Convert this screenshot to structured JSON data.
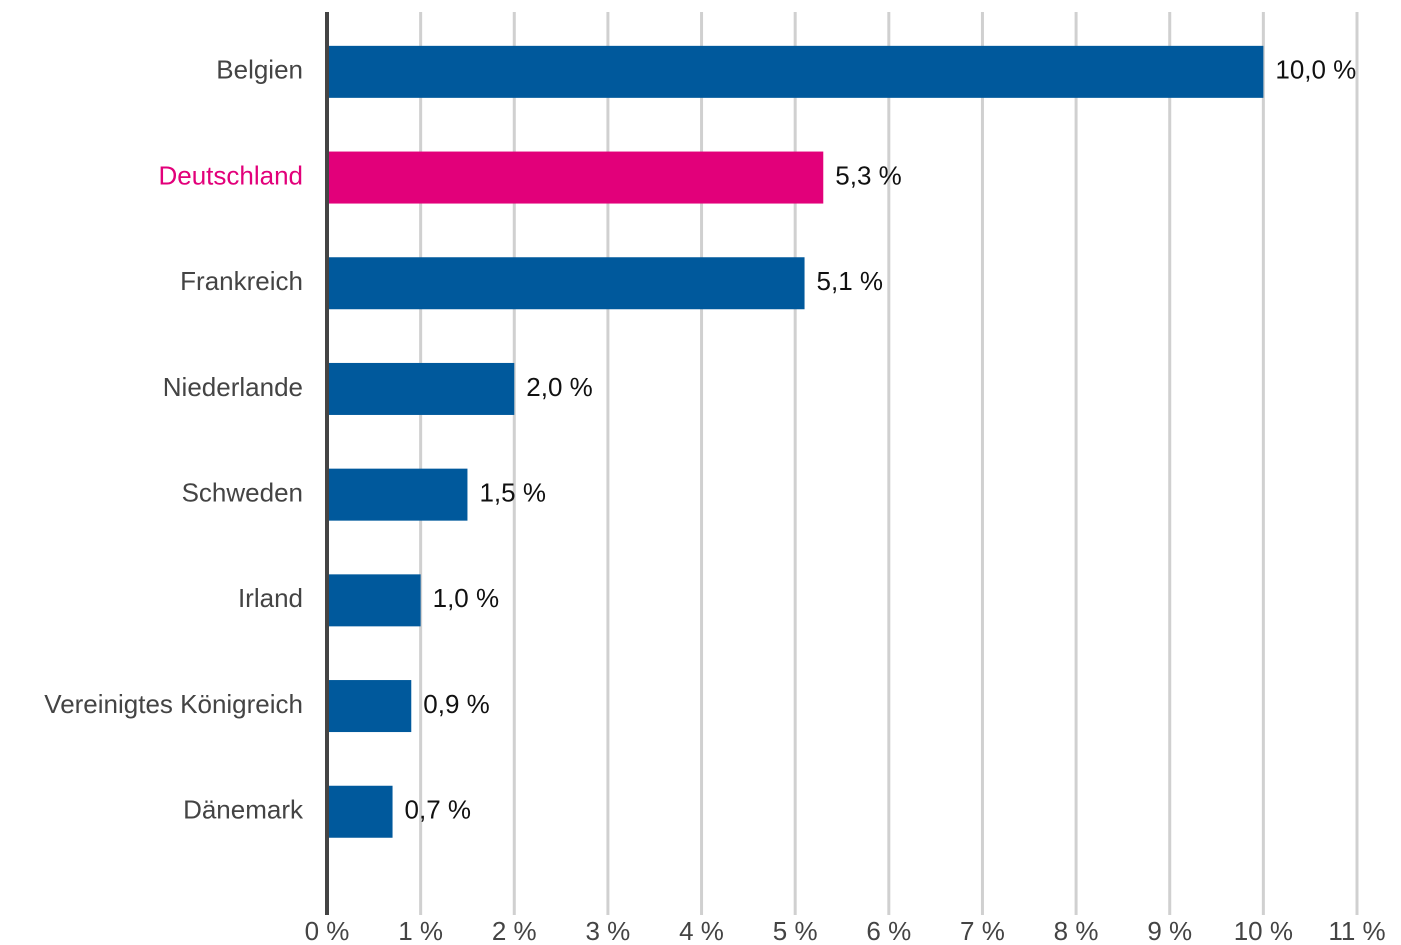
{
  "chart_data": {
    "type": "bar",
    "orientation": "horizontal",
    "categories": [
      "Belgien",
      "Deutschland",
      "Frankreich",
      "Niederlande",
      "Schweden",
      "Irland",
      "Vereinigtes Königreich",
      "Dänemark"
    ],
    "values": [
      10.0,
      5.3,
      5.1,
      2.0,
      1.5,
      1.0,
      0.9,
      0.7
    ],
    "value_labels": [
      "10,0 %",
      "5,3 %",
      "5,1 %",
      "2,0 %",
      "1,5 %",
      "1,0 %",
      "0,9 %",
      "0,7 %"
    ],
    "colors": [
      "#00599c",
      "#e2007a",
      "#00599c",
      "#00599c",
      "#00599c",
      "#00599c",
      "#00599c",
      "#00599c"
    ],
    "label_colors": [
      "#444444",
      "#e2007a",
      "#444444",
      "#444444",
      "#444444",
      "#444444",
      "#444444",
      "#444444"
    ],
    "xlim": [
      0,
      11
    ],
    "xticks": [
      {
        "value": 0,
        "label": "0 %"
      },
      {
        "value": 1,
        "label": "1 %"
      },
      {
        "value": 2,
        "label": "2 %"
      },
      {
        "value": 3,
        "label": "3 %"
      },
      {
        "value": 4,
        "label": "4 %"
      },
      {
        "value": 5,
        "label": "5 %"
      },
      {
        "value": 6,
        "label": "6 %"
      },
      {
        "value": 7,
        "label": "7 %"
      },
      {
        "value": 8,
        "label": "8 %"
      },
      {
        "value": 9,
        "label": "9 %"
      },
      {
        "value": 10,
        "label": "10 %"
      },
      {
        "value": 11,
        "label": "11 %"
      }
    ],
    "grid": true
  }
}
